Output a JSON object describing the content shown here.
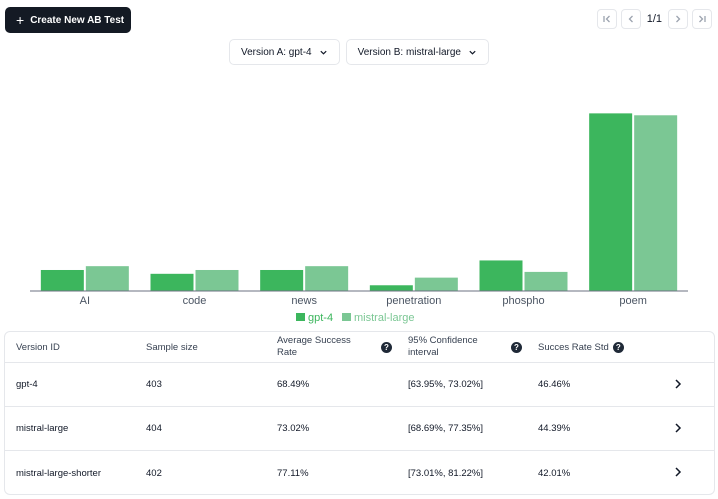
{
  "toolbar": {
    "create_label": "Create New AB Test"
  },
  "pagination": {
    "text": "1/1"
  },
  "selectors": {
    "version_a": "Version A: gpt-4",
    "version_b": "Version B: mistral-large"
  },
  "chart_data": {
    "type": "bar",
    "categories": [
      "AI",
      "code",
      "news",
      "penetration",
      "phospho",
      "poem"
    ],
    "series": [
      {
        "name": "gpt-4",
        "values": [
          11,
          9,
          11,
          3,
          16,
          93
        ]
      },
      {
        "name": "mistral-large",
        "values": [
          13,
          11,
          13,
          7,
          10,
          92
        ]
      }
    ],
    "colors": [
      "#3cb65d",
      "#7bc794"
    ],
    "ylim": [
      0,
      100
    ],
    "legend": "bottom-center"
  },
  "table": {
    "headers": {
      "version_id": "Version ID",
      "sample_size": "Sample size",
      "avg_success_1": "Average Success",
      "avg_success_2": "Rate",
      "ci_1": "95% Confidence",
      "ci_2": "interval",
      "std": "Succes Rate Std",
      "help": "?"
    },
    "rows": [
      {
        "version": "gpt-4",
        "sample": "403",
        "avg": "68.49%",
        "ci": "[63.95%, 73.02%]",
        "std": "46.46%"
      },
      {
        "version": "mistral-large",
        "sample": "404",
        "avg": "73.02%",
        "ci": "[68.69%, 77.35%]",
        "std": "44.39%"
      },
      {
        "version": "mistral-large-shorter",
        "sample": "402",
        "avg": "77.11%",
        "ci": "[73.01%, 81.22%]",
        "std": "42.01%"
      }
    ]
  }
}
